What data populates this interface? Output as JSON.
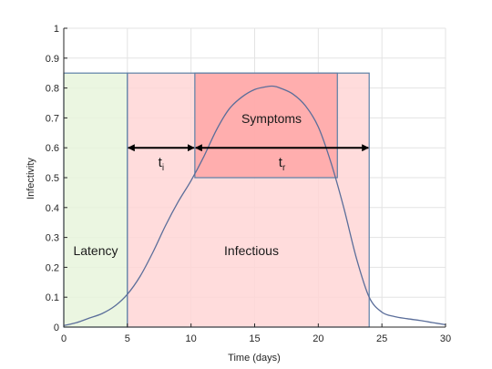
{
  "chart_data": {
    "type": "area",
    "title": "",
    "xlabel": "Time (days)",
    "ylabel": "Infectivity",
    "xlim": [
      0,
      30
    ],
    "ylim": [
      0,
      1
    ],
    "x_ticks": [
      0,
      5,
      10,
      15,
      20,
      25,
      30
    ],
    "y_ticks": [
      0,
      0.1,
      0.2,
      0.3,
      0.4,
      0.5,
      0.6,
      0.7,
      0.8,
      0.9,
      1
    ],
    "grid": true,
    "series": [
      {
        "x": [
          0,
          1,
          2,
          3,
          4,
          5,
          6,
          7,
          8,
          9,
          10,
          11,
          12,
          13,
          14,
          15,
          16,
          16.5,
          17,
          18,
          19,
          20,
          21,
          22,
          23,
          24,
          25,
          26,
          27,
          28,
          29,
          30
        ],
        "y": [
          0.005,
          0.015,
          0.03,
          0.045,
          0.07,
          0.11,
          0.17,
          0.25,
          0.34,
          0.42,
          0.49,
          0.57,
          0.66,
          0.73,
          0.77,
          0.795,
          0.805,
          0.806,
          0.8,
          0.78,
          0.74,
          0.67,
          0.55,
          0.4,
          0.23,
          0.1,
          0.05,
          0.035,
          0.028,
          0.022,
          0.015,
          0.008
        ]
      }
    ],
    "regions": [
      {
        "label": "Latency",
        "x0": 0,
        "x1": 5,
        "y0": 0,
        "y1": 0.85,
        "color": "#e8f5dc"
      },
      {
        "label": "Infectious",
        "x0": 5,
        "x1": 24,
        "y0": 0,
        "y1": 0.85,
        "color": "#ffd6d6"
      },
      {
        "label": "Symptoms",
        "x0": 10.3,
        "x1": 21.5,
        "y0": 0.5,
        "y1": 0.85,
        "color": "#ffa6a6"
      }
    ],
    "arrows": [
      {
        "label_main": "t",
        "label_sub": "i",
        "x0": 5,
        "x1": 10.3,
        "y": 0.6
      },
      {
        "label_main": "t",
        "label_sub": "r",
        "x0": 10.3,
        "x1": 24,
        "y": 0.6
      }
    ],
    "colors": {
      "line": "#5b6e9a",
      "edge": "#5b7fa6",
      "grid": "#e3e3e3",
      "axis": "#262626",
      "arrow": "#000000"
    }
  }
}
